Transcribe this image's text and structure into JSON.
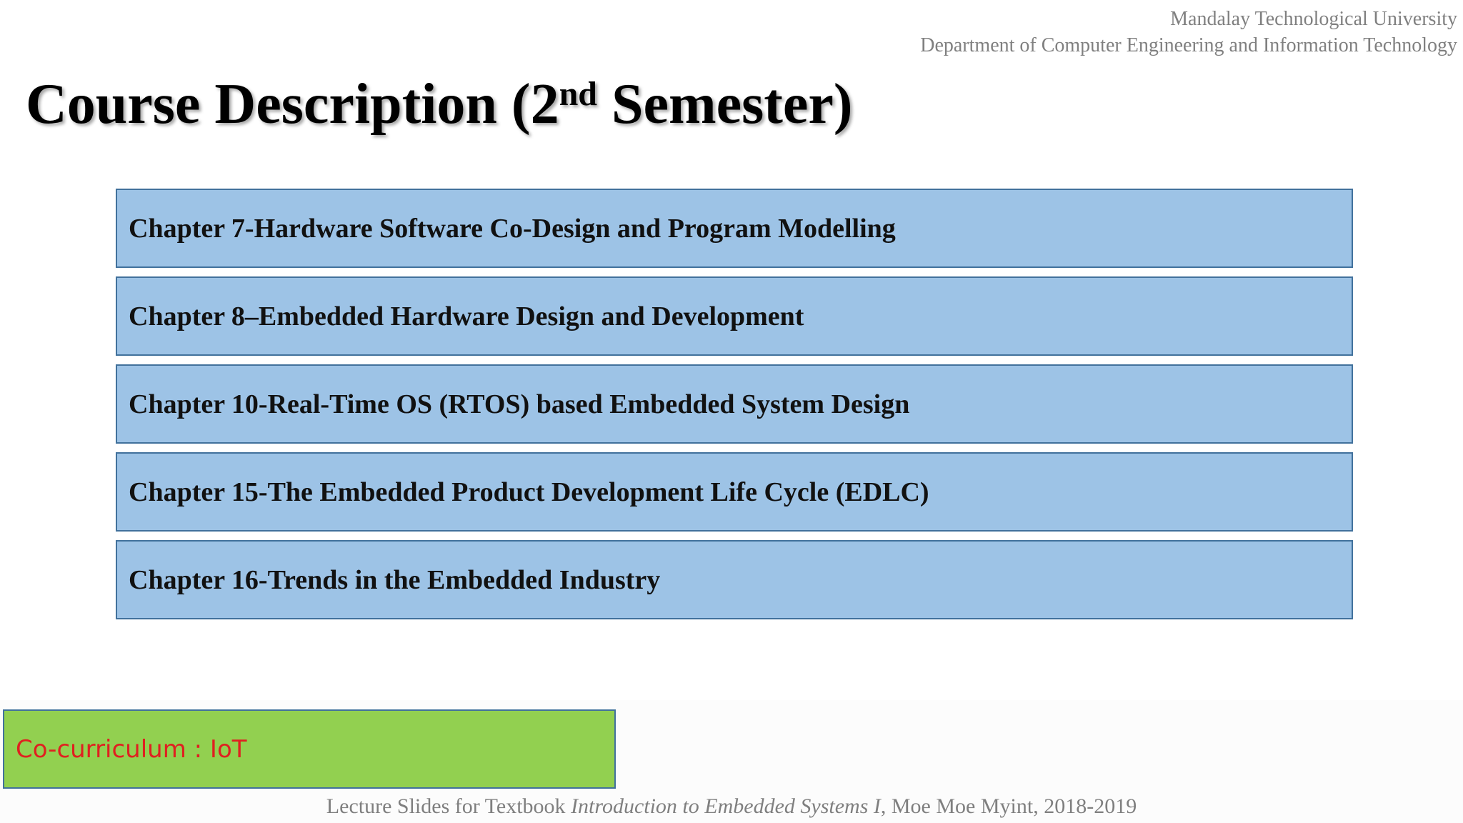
{
  "header": {
    "university": "Mandalay Technological University",
    "department": "Department of Computer Engineering and Information Technology"
  },
  "title": {
    "main": "Course Description (2",
    "superscript": "nd",
    "rest": " Semester)"
  },
  "chapters": [
    "Chapter 7-Hardware Software Co-Design and Program Modelling",
    "Chapter 8–Embedded Hardware Design and Development",
    "Chapter 10-Real-Time OS (RTOS) based Embedded System Design",
    "Chapter 15-The Embedded Product Development Life Cycle (EDLC)",
    "Chapter 16-Trends in the Embedded Industry"
  ],
  "cocurriculum": "Co-curriculum : IoT",
  "footer": {
    "prefix": "Lecture Slides for Textbook ",
    "book_title": "Introduction to Embedded Systems I",
    "suffix": ", Moe Moe Myint, 2018-2019"
  },
  "colors": {
    "chapter_box": "#9dc3e6",
    "chapter_border": "#41719c",
    "cocurriculum_box": "#92d050",
    "cocurriculum_text": "#e02020",
    "header_text": "#808080"
  }
}
